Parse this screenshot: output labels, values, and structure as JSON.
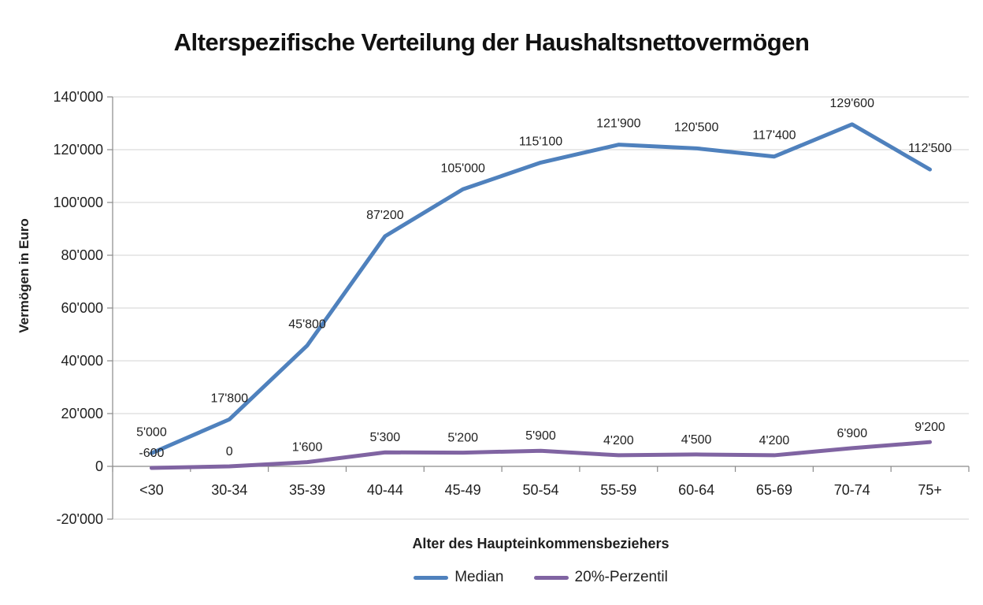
{
  "chart_data": {
    "type": "line",
    "title": "Alterspezifische Verteilung der Haushaltsnettovermögen",
    "xlabel": "Alter des Haupteinkommensbeziehers",
    "ylabel": "Vermögen in Euro",
    "categories": [
      "<30",
      "30-34",
      "35-39",
      "40-44",
      "45-49",
      "50-54",
      "55-59",
      "60-64",
      "65-69",
      "70-74",
      "75+"
    ],
    "series": [
      {
        "name": "Median",
        "color": "#4F81BD",
        "values": [
          5000,
          17800,
          45800,
          87200,
          105000,
          115100,
          121900,
          120500,
          117400,
          129600,
          112500
        ],
        "labels": [
          "5'000",
          "17'800",
          "45'800",
          "87'200",
          "105'000",
          "115'100",
          "121'900",
          "120'500",
          "117'400",
          "129'600",
          "112'500"
        ]
      },
      {
        "name": "20%-Perzentil",
        "color": "#8064A2",
        "values": [
          -600,
          0,
          1600,
          5300,
          5200,
          5900,
          4200,
          4500,
          4200,
          6900,
          9200
        ],
        "labels": [
          "-600",
          "0",
          "1'600",
          "5'300",
          "5'200",
          "5'900",
          "4'200",
          "4'500",
          "4'200",
          "6'900",
          "9'200"
        ]
      }
    ],
    "ylim": [
      -20000,
      140000
    ],
    "ytick_step": 20000,
    "ytick_labels": [
      "-20'000",
      "0",
      "20'000",
      "40'000",
      "60'000",
      "80'000",
      "100'000",
      "120'000",
      "140'000"
    ],
    "grid": true,
    "legend_position": "bottom"
  },
  "colors": {
    "background": "#FFFFFF",
    "gridline": "#D3D3D3",
    "axis": "#8A8A8A",
    "text": "#1F1F1F"
  }
}
